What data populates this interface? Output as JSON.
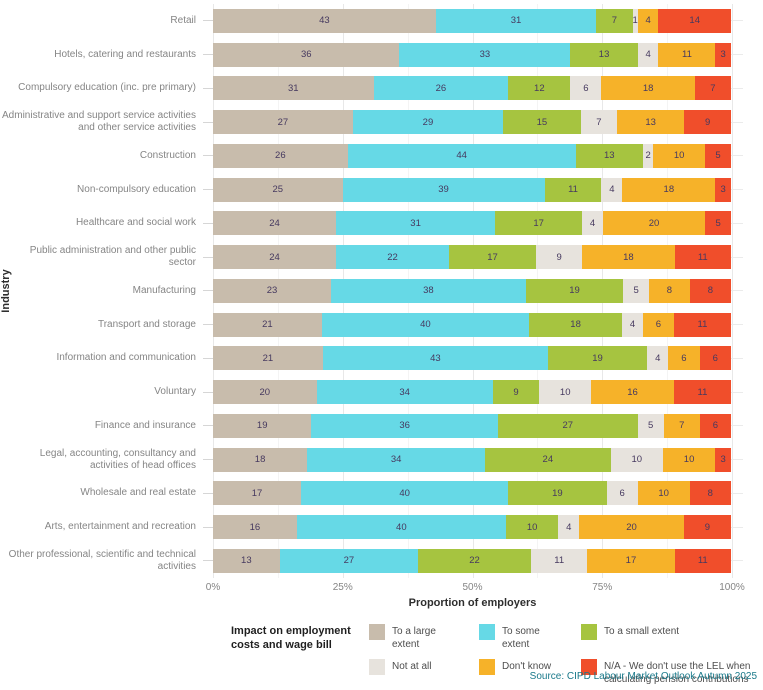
{
  "chart_data": {
    "type": "bar",
    "variant": "stacked-horizontal",
    "title": "",
    "xlabel": "Proportion of employers",
    "ylabel": "Industry",
    "xlim": [
      0,
      100
    ],
    "x_ticks": [
      "0%",
      "25%",
      "50%",
      "75%",
      "100%"
    ],
    "grid": "vertical, major every 25%, minor every 12.5%",
    "legend_position": "bottom",
    "legend_title": "Impact on employment costs and wage bill",
    "categories": [
      "Retail",
      "Hotels, catering and restaurants",
      "Compulsory education (inc. pre primary)",
      "Administrative and support service activities and other service activities",
      "Construction",
      "Non-compulsory education",
      "Healthcare and social work",
      "Public administration and other public sector",
      "Manufacturing",
      "Transport and storage",
      "Information and communication",
      "Voluntary",
      "Finance and insurance",
      "Legal, accounting, consultancy and activities of head offices",
      "Wholesale and real estate",
      "Arts, entertainment and recreation",
      "Other professional, scientific and technical activities"
    ],
    "series": [
      {
        "name": "To a large extent",
        "color": "#c8bcac",
        "values": [
          43,
          36,
          31,
          27,
          26,
          25,
          24,
          24,
          23,
          21,
          21,
          20,
          19,
          18,
          17,
          16,
          13
        ]
      },
      {
        "name": "To some extent",
        "color": "#66d9e6",
        "values": [
          31,
          33,
          26,
          29,
          44,
          39,
          31,
          22,
          38,
          40,
          43,
          34,
          36,
          34,
          40,
          40,
          27
        ]
      },
      {
        "name": "To a small extent",
        "color": "#a6c440",
        "values": [
          7,
          13,
          12,
          15,
          13,
          11,
          17,
          17,
          19,
          18,
          19,
          9,
          27,
          24,
          19,
          10,
          22
        ]
      },
      {
        "name": "Not at all",
        "color": "#e7e3dd",
        "values": [
          1,
          4,
          6,
          7,
          2,
          4,
          4,
          9,
          5,
          4,
          4,
          10,
          5,
          10,
          6,
          4,
          11
        ]
      },
      {
        "name": "Don't know",
        "color": "#f6b229",
        "values": [
          4,
          11,
          18,
          13,
          10,
          18,
          20,
          18,
          8,
          6,
          6,
          16,
          7,
          10,
          10,
          20,
          17
        ]
      },
      {
        "name": "N/A - We don't use the LEL when calculating pension contributions",
        "color": "#f04e2b",
        "values": [
          14,
          3,
          7,
          9,
          5,
          3,
          5,
          11,
          8,
          11,
          6,
          11,
          6,
          3,
          8,
          9,
          11
        ]
      }
    ],
    "value_label_color": "#46395f"
  },
  "source": "Source: CIPD Labour Market Outlook Autumn 2025"
}
